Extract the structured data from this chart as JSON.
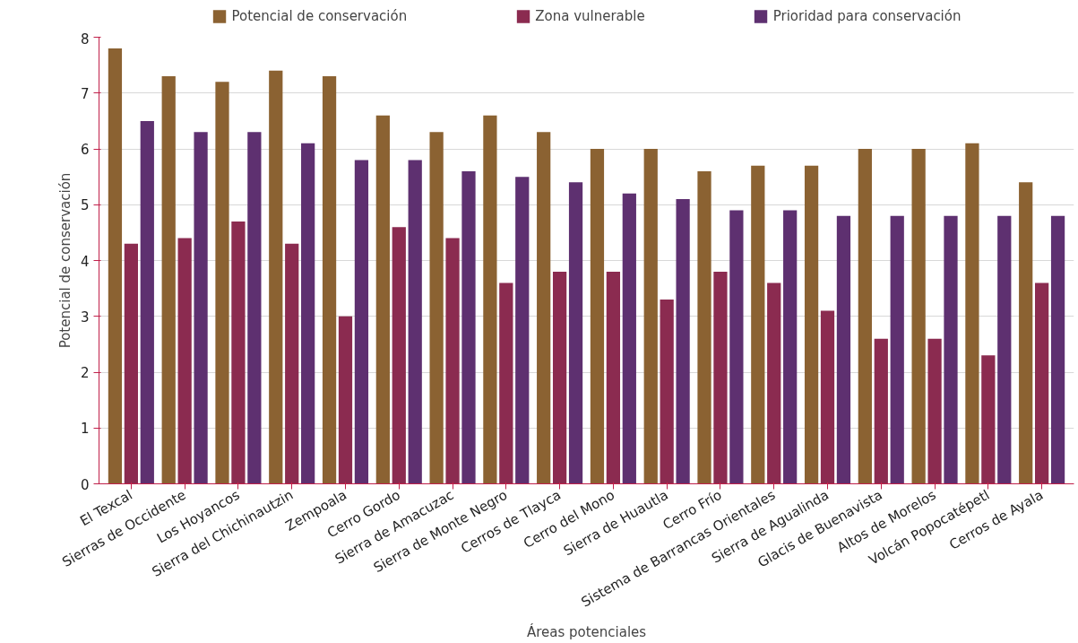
{
  "chart_data": {
    "type": "bar",
    "xlabel": "Áreas potenciales",
    "ylabel": "Potencial de conservación",
    "categories": [
      "El Texcal",
      "Sierras de Occidente",
      "Los Hoyancos",
      "Sierra del Chichinautzin",
      "Zempoala",
      "Cerro Gordo",
      "Sierra de Amacuzac",
      "Sierra de Monte Negro",
      "Cerros de Tlayca",
      "Cerro del Mono",
      "Sierra de Huautla",
      "Cerro Frío",
      "Sistema de Barrancas Orientales",
      "Sierra de Agualinda",
      "Glacis de Buenavista",
      "Altos de Morelos",
      "Volcán Popocatépetl",
      "Cerros de Ayala"
    ],
    "series": [
      {
        "name": "Potencial de conservación",
        "color": "#8b6232",
        "values": [
          7.8,
          7.3,
          7.2,
          7.4,
          7.3,
          6.6,
          6.3,
          6.6,
          6.3,
          6.0,
          6.0,
          5.6,
          5.7,
          5.7,
          6.0,
          6.0,
          6.1,
          5.4
        ]
      },
      {
        "name": "Zona vulnerable",
        "color": "#8b2b50",
        "values": [
          4.3,
          4.4,
          4.7,
          4.3,
          3.0,
          4.6,
          4.4,
          3.6,
          3.8,
          3.8,
          3.3,
          3.8,
          3.6,
          3.1,
          2.6,
          2.6,
          2.3,
          3.6
        ]
      },
      {
        "name": "Prioridad para conservación",
        "color": "#5e3070",
        "values": [
          6.5,
          6.3,
          6.3,
          6.1,
          5.8,
          5.8,
          5.6,
          5.5,
          5.4,
          5.2,
          5.1,
          4.9,
          4.9,
          4.8,
          4.8,
          4.8,
          4.8,
          4.8
        ]
      }
    ],
    "ylim": [
      0,
      8
    ],
    "yticks": [
      0,
      1,
      2,
      3,
      4,
      5,
      6,
      7,
      8
    ],
    "grid": "y",
    "legend": "top"
  }
}
